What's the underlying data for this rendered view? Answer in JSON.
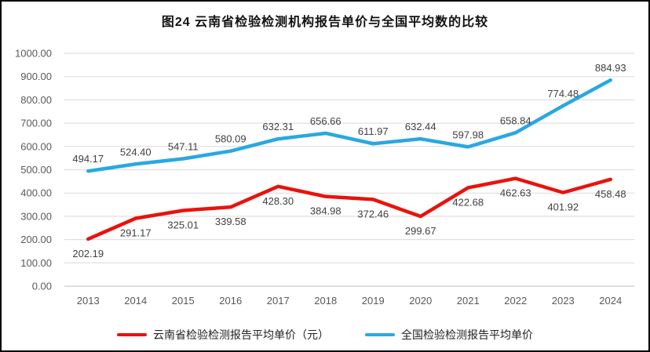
{
  "title": "图24 云南省检验检测机构报告单价与全国平均数的比较",
  "chart_data": {
    "type": "line",
    "title": "图24 云南省检验检测机构报告单价与全国平均数的比较",
    "categories": [
      "2013",
      "2014",
      "2015",
      "2016",
      "2017",
      "2018",
      "2019",
      "2020",
      "2021",
      "2022",
      "2023",
      "2024"
    ],
    "series": [
      {
        "key": "yunnan",
        "name": "云南省检验检测报告平均单价（元）",
        "color": "#e8130c",
        "label_position": "below",
        "values": [
          202.19,
          291.17,
          325.01,
          339.58,
          428.3,
          384.98,
          372.46,
          299.67,
          422.68,
          462.63,
          401.92,
          458.48
        ]
      },
      {
        "key": "national",
        "name": "全国检验检测报告平均单价",
        "color": "#29a8e0",
        "label_position": "above",
        "values": [
          494.17,
          524.4,
          547.11,
          580.09,
          632.31,
          656.66,
          611.97,
          632.44,
          597.98,
          658.84,
          774.48,
          884.93
        ]
      }
    ],
    "ylim": [
      0,
      1000
    ],
    "ytick_step": 100,
    "ytick_labels": [
      "0.00",
      "100.00",
      "200.00",
      "300.00",
      "400.00",
      "500.00",
      "600.00",
      "700.00",
      "800.00",
      "900.00",
      "1000.00"
    ],
    "grid": true,
    "gridline_color": "#d9d9d9",
    "axis_line_color": "#bfbfbf",
    "legend_position": "bottom"
  }
}
